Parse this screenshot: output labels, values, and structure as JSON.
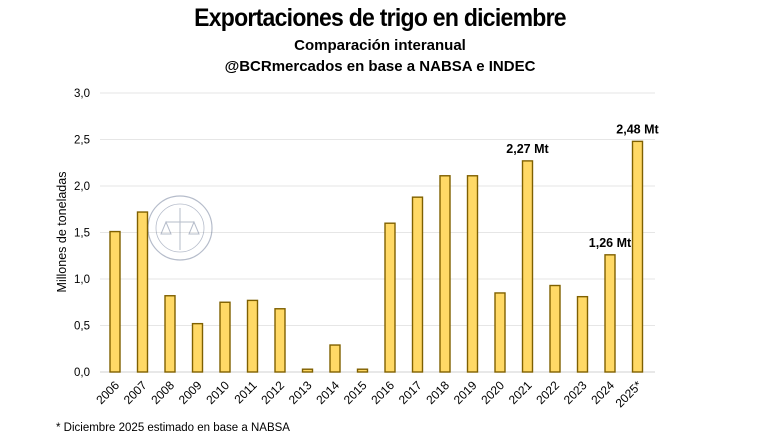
{
  "chart_data": {
    "type": "bar",
    "title": "Exportaciones de trigo en diciembre",
    "subtitle": "Comparación interanual",
    "source_line": "@BCRmercados en base a NABSA e INDEC",
    "xlabel": "",
    "ylabel": "Millones de toneladas",
    "ylim": [
      0,
      3.0
    ],
    "yticks": [
      "0,0",
      "0,5",
      "1,0",
      "1,5",
      "2,0",
      "2,5",
      "3,0"
    ],
    "grid": true,
    "categories": [
      "2006",
      "2007",
      "2008",
      "2009",
      "2010",
      "2011",
      "2012",
      "2013",
      "2014",
      "2015",
      "2016",
      "2017",
      "2018",
      "2019",
      "2020",
      "2021",
      "2022",
      "2023",
      "2024",
      "2025*"
    ],
    "values": [
      1.51,
      1.72,
      0.82,
      0.52,
      0.75,
      0.77,
      0.68,
      0.03,
      0.29,
      0.03,
      1.6,
      1.88,
      2.11,
      2.11,
      0.85,
      2.27,
      0.93,
      0.81,
      1.26,
      2.48
    ],
    "data_labels": [
      {
        "category": "2021",
        "text": "2,27 Mt"
      },
      {
        "category": "2024",
        "text": "1,26 Mt"
      },
      {
        "category": "2025*",
        "text": "2,48 Mt"
      }
    ],
    "colors": {
      "bar_fill": "#FFD966",
      "bar_stroke": "#7F6000",
      "grid": "#E6E6E6"
    },
    "footnote": "* Diciembre 2025 estimado en base a NABSA",
    "watermark": "BOLSA DE COMERCIO DE ROSARIO"
  }
}
